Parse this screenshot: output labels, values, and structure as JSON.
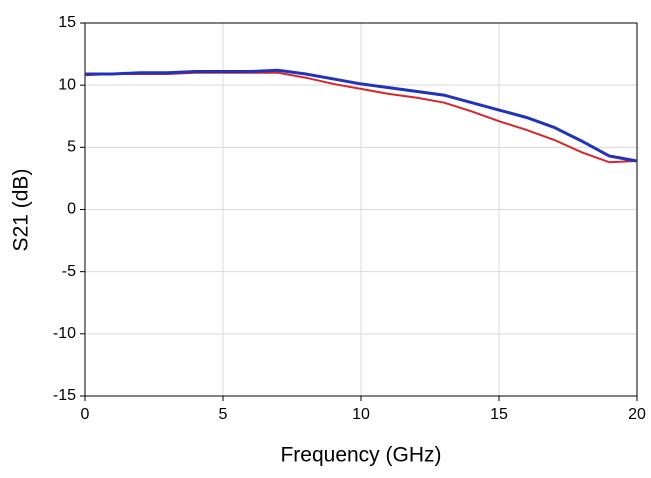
{
  "chart_data": {
    "type": "line",
    "xlabel": "Frequency (GHz)",
    "ylabel": "S21 (dB)",
    "x": [
      0,
      1,
      2,
      3,
      4,
      5,
      6,
      7,
      8,
      9,
      10,
      11,
      12,
      13,
      14,
      15,
      16,
      17,
      18,
      19,
      20
    ],
    "series": [
      {
        "color": "#d62728",
        "values": [
          10.8,
          10.9,
          10.9,
          10.9,
          11.0,
          11.0,
          11.0,
          11.0,
          10.6,
          10.1,
          9.7,
          9.3,
          9.0,
          8.6,
          7.9,
          7.1,
          6.4,
          5.6,
          4.6,
          3.8,
          3.9
        ]
      },
      {
        "color": "#2233bb",
        "values": [
          10.9,
          10.9,
          11.0,
          11.0,
          11.1,
          11.1,
          11.1,
          11.2,
          10.9,
          10.5,
          10.1,
          9.8,
          9.5,
          9.2,
          8.6,
          8.0,
          7.4,
          6.6,
          5.5,
          4.3,
          3.9
        ]
      }
    ],
    "xlim": [
      0,
      20
    ],
    "xticks": [
      0,
      5,
      10,
      15,
      20
    ],
    "ylim": [
      -15,
      15
    ],
    "yticks": [
      -15,
      -10,
      -5,
      0,
      5,
      10,
      15
    ],
    "grid": true
  }
}
